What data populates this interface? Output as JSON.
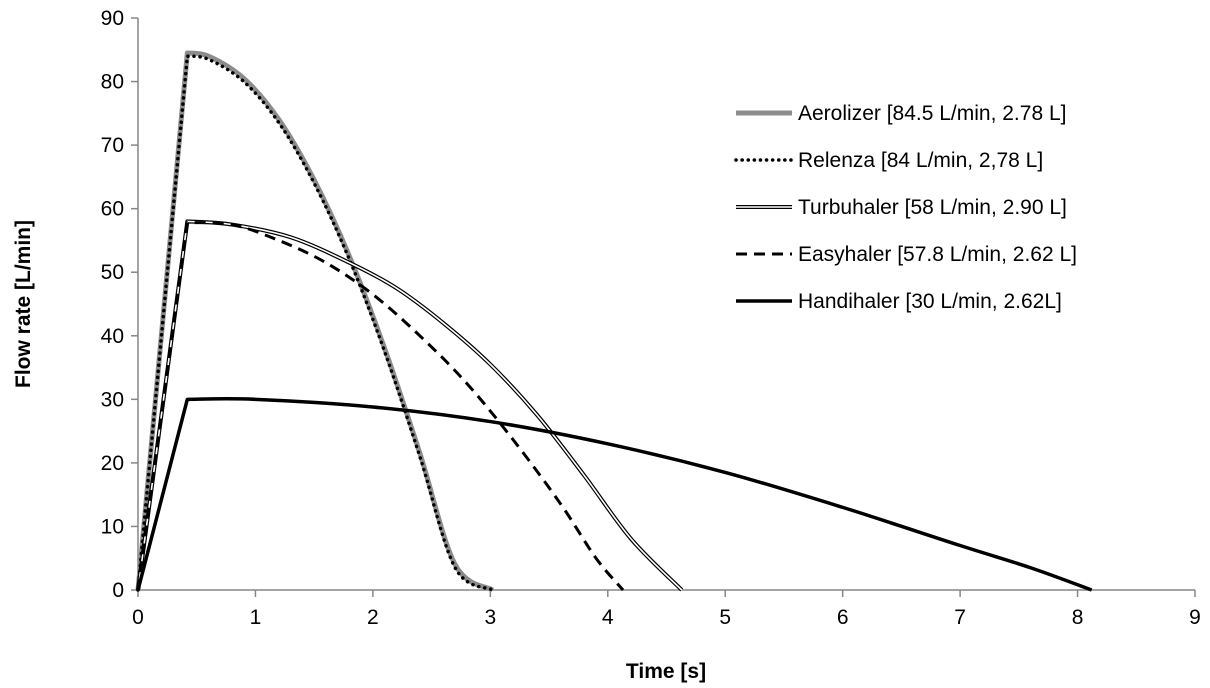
{
  "chart_data": {
    "type": "line",
    "xlabel": "Time [s]",
    "ylabel": "Flow  rate [L/min]",
    "xlim": [
      0,
      9
    ],
    "ylim": [
      0,
      90
    ],
    "xticks": [
      "0",
      "1",
      "2",
      "3",
      "4",
      "5",
      "6",
      "7",
      "8",
      "9"
    ],
    "yticks": [
      "0",
      "10",
      "20",
      "30",
      "40",
      "50",
      "60",
      "70",
      "80",
      "90"
    ],
    "grid": false,
    "legend_position": "right",
    "series": [
      {
        "name": "Aerolizer [84.5 L/min, 2.78 L]",
        "style": "thick-gray",
        "color": "#8c8c8c",
        "x": [
          0,
          0.42,
          0.6,
          0.9,
          1.2,
          1.5,
          1.8,
          2.1,
          2.4,
          2.7,
          3.02
        ],
        "y": [
          0,
          84.5,
          84.0,
          80.5,
          74.0,
          64.5,
          52.5,
          38.0,
          21.5,
          4.0,
          0
        ]
      },
      {
        "name": "Relenza [84 L/min, 2,78 L]",
        "style": "dotted",
        "color": "#000000",
        "x": [
          0,
          0.42,
          0.6,
          0.9,
          1.2,
          1.5,
          1.8,
          2.1,
          2.4,
          2.7,
          3.02
        ],
        "y": [
          0,
          84.0,
          83.5,
          80.0,
          73.5,
          64.0,
          52.0,
          37.5,
          21.0,
          3.5,
          0
        ]
      },
      {
        "name": "Turbuhaler [58 L/min, 2.90 L]",
        "style": "double",
        "color": "#000000",
        "x": [
          0,
          0.42,
          0.8,
          1.3,
          1.8,
          2.2,
          2.6,
          3.0,
          3.4,
          3.8,
          4.2,
          4.63
        ],
        "y": [
          0,
          58.0,
          57.5,
          55.5,
          51.5,
          47.5,
          42.0,
          35.5,
          27.5,
          18.0,
          8.0,
          0
        ]
      },
      {
        "name": "Easyhaler [57.8 L/min, 2.62 L]",
        "style": "dashed",
        "color": "#000000",
        "x": [
          0,
          0.42,
          0.8,
          1.2,
          1.6,
          2.0,
          2.4,
          2.8,
          3.2,
          3.6,
          3.9,
          4.13
        ],
        "y": [
          0,
          57.8,
          57.5,
          55.0,
          51.5,
          46.5,
          40.0,
          32.5,
          23.5,
          13.5,
          5.0,
          0
        ]
      },
      {
        "name": "Handihaler [30 L/min, 2.62L]",
        "style": "solid-thick",
        "color": "#000000",
        "x": [
          0,
          0.42,
          1.0,
          2.0,
          3.0,
          4.0,
          5.0,
          6.0,
          7.0,
          7.6,
          8.12
        ],
        "y": [
          0,
          30.0,
          30.0,
          28.8,
          26.5,
          23.0,
          18.5,
          13.0,
          7.0,
          3.5,
          0
        ]
      }
    ]
  }
}
